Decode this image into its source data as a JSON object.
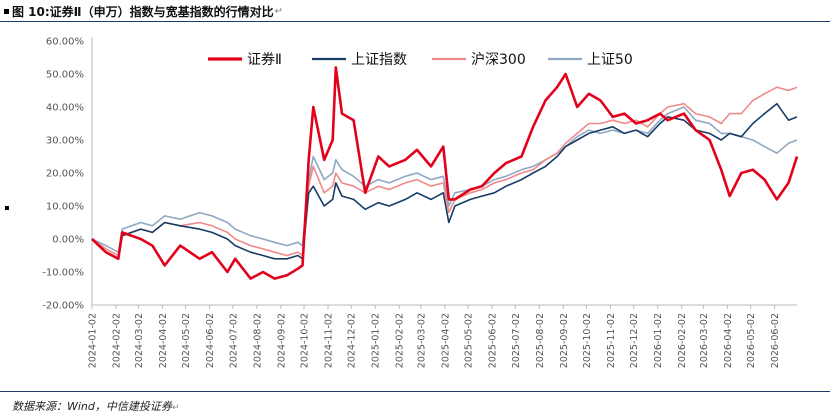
{
  "figure": {
    "title": "图 10:证券Ⅱ（申万）指数与宽基指数的行情对比",
    "source": "数据来源：Wind，中信建投证券"
  },
  "chart_data": {
    "type": "line",
    "title": "图 10:证券Ⅱ（申万）指数与宽基指数的行情对比",
    "xlabel": "",
    "ylabel": "",
    "y_unit": "%",
    "ylim": [
      -20,
      60
    ],
    "y_ticks": [
      60,
      50,
      40,
      30,
      20,
      10,
      0,
      -10,
      -20
    ],
    "y_tick_labels": [
      "60.00%",
      "50.00%",
      "40.00%",
      "30.00%",
      "20.00%",
      "10.00%",
      "0.00%",
      "-10.00%",
      "-20.00%"
    ],
    "x_tick_labels": [
      "2024-01-02",
      "2024-02-02",
      "2024-03-02",
      "2024-04-02",
      "2024-05-02",
      "2024-06-02",
      "2024-07-02",
      "2024-08-02",
      "2024-09-02",
      "2024-10-02",
      "2024-11-02",
      "2024-12-02",
      "2025-01-02",
      "2025-02-02",
      "2025-03-02",
      "2025-04-02",
      "2025-05-02",
      "2025-06-02",
      "2025-07-02",
      "2025-08-02",
      "2025-09-02",
      "2025-10-02",
      "2025-11-02",
      "2025-12-02",
      "2026-01-02",
      "2026-02-02",
      "2026-03-02",
      "2026-04-02",
      "2026-05-02",
      "2026-06-02"
    ],
    "legend_position": "top",
    "grid": false,
    "x": [
      "2024-01-02",
      "2024-01-20",
      "2024-02-05",
      "2024-02-10",
      "2024-03-05",
      "2024-03-20",
      "2024-04-05",
      "2024-04-25",
      "2024-05-20",
      "2024-06-05",
      "2024-06-25",
      "2024-07-05",
      "2024-07-25",
      "2024-08-10",
      "2024-08-25",
      "2024-09-10",
      "2024-09-24",
      "2024-09-30",
      "2024-10-08",
      "2024-10-14",
      "2024-10-28",
      "2024-11-08",
      "2024-11-12",
      "2024-11-20",
      "2024-12-05",
      "2024-12-20",
      "2025-01-06",
      "2025-01-20",
      "2025-02-10",
      "2025-02-25",
      "2025-03-15",
      "2025-03-31",
      "2025-04-07",
      "2025-04-15",
      "2025-05-05",
      "2025-05-20",
      "2025-06-05",
      "2025-06-20",
      "2025-07-10",
      "2025-07-25",
      "2025-08-10",
      "2025-08-25",
      "2025-09-05",
      "2025-09-20",
      "2025-10-05",
      "2025-10-20",
      "2025-11-05",
      "2025-11-20",
      "2025-12-05",
      "2025-12-20",
      "2026-01-05",
      "2026-01-15",
      "2026-02-05",
      "2026-02-20",
      "2026-03-10",
      "2026-03-25",
      "2026-04-05",
      "2026-04-20",
      "2026-05-05",
      "2026-05-20",
      "2026-06-05",
      "2026-06-20",
      "2026-07-01"
    ],
    "series": [
      {
        "name": "证券Ⅱ",
        "color": "#e3001b",
        "width": 2.6,
        "values": [
          0,
          -4,
          -6,
          2,
          0,
          -2,
          -8,
          -2,
          -6,
          -4,
          -10,
          -6,
          -12,
          -10,
          -12,
          -11,
          -9,
          -8,
          24,
          40,
          24,
          30,
          52,
          38,
          36,
          14,
          25,
          22,
          24,
          27,
          22,
          28,
          12,
          12,
          15,
          16,
          20,
          23,
          25,
          34,
          42,
          46,
          50,
          40,
          44,
          42,
          37,
          38,
          35,
          36,
          38,
          36,
          38,
          33,
          30,
          21,
          13,
          20,
          21,
          18,
          12,
          17,
          25
        ]
      },
      {
        "name": "上证指数",
        "color": "#163c66",
        "width": 1.6,
        "values": [
          0,
          -4,
          -6,
          1,
          3,
          2,
          5,
          4,
          3,
          2,
          0,
          -2,
          -4,
          -5,
          -6,
          -6,
          -5,
          -6,
          14,
          16,
          10,
          12,
          17,
          13,
          12,
          9,
          11,
          10,
          12,
          14,
          12,
          14,
          5,
          10,
          12,
          13,
          14,
          16,
          18,
          20,
          22,
          25,
          28,
          30,
          32,
          33,
          34,
          32,
          33,
          31,
          35,
          37,
          36,
          33,
          32,
          30,
          32,
          31,
          35,
          38,
          41,
          36,
          37
        ]
      },
      {
        "name": "沪深300",
        "color": "#f08a8a",
        "width": 1.6,
        "values": [
          0,
          -3,
          -5,
          1,
          3,
          2,
          5,
          4,
          5,
          4,
          2,
          0,
          -2,
          -3,
          -4,
          -5,
          -4,
          -5,
          16,
          22,
          14,
          16,
          20,
          17,
          16,
          14,
          16,
          15,
          17,
          18,
          16,
          17,
          8,
          12,
          14,
          15,
          17,
          18,
          20,
          21,
          24,
          26,
          29,
          32,
          35,
          35,
          36,
          35,
          36,
          34,
          38,
          40,
          41,
          38,
          37,
          35,
          38,
          38,
          42,
          44,
          46,
          45,
          46
        ]
      },
      {
        "name": "上证50",
        "color": "#8fa8c2",
        "width": 1.6,
        "values": [
          0,
          -2,
          -4,
          3,
          5,
          4,
          7,
          6,
          8,
          7,
          5,
          3,
          1,
          0,
          -1,
          -2,
          -1,
          -2,
          18,
          25,
          18,
          20,
          24,
          21,
          19,
          16,
          18,
          17,
          19,
          20,
          18,
          19,
          10,
          14,
          15,
          16,
          18,
          19,
          21,
          22,
          24,
          26,
          28,
          31,
          33,
          32,
          33,
          32,
          33,
          32,
          36,
          38,
          40,
          36,
          35,
          32,
          32,
          31,
          30,
          28,
          26,
          29,
          30
        ]
      }
    ]
  }
}
